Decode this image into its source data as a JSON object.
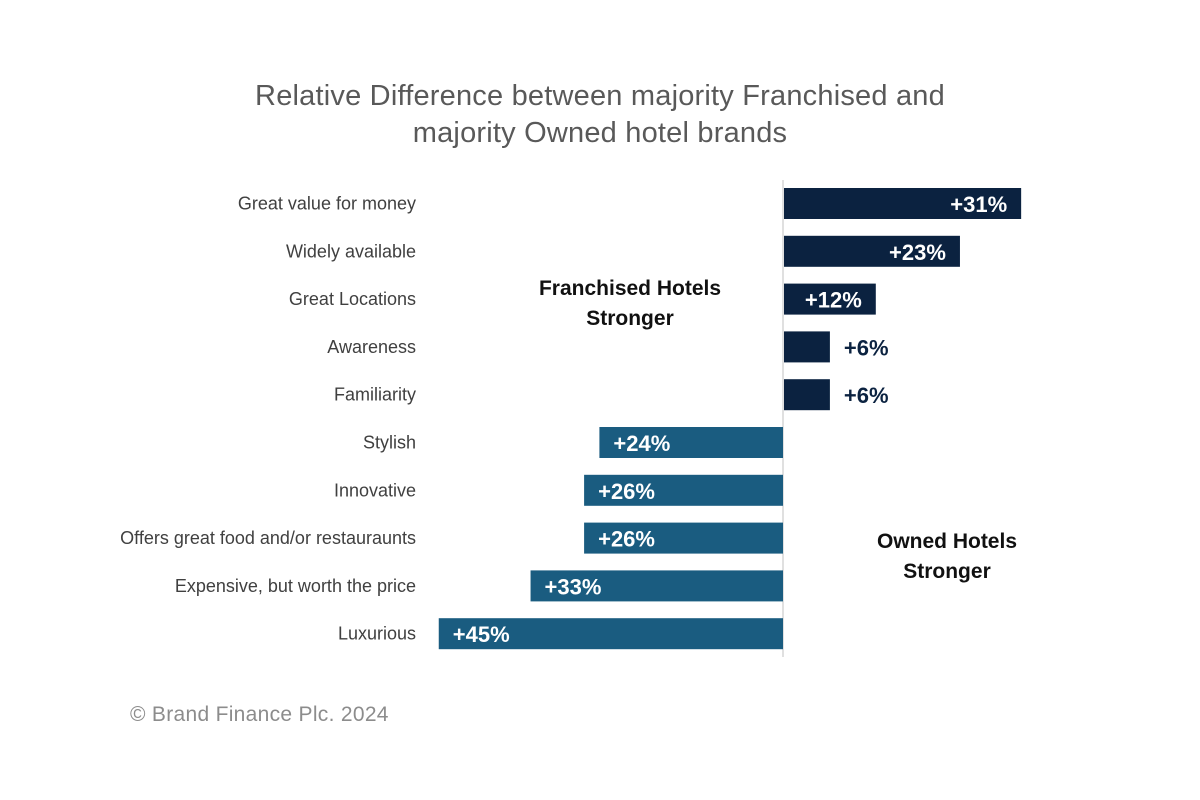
{
  "title_lines": [
    "Relative Difference between majority Franchised and",
    "majority Owned hotel brands"
  ],
  "annotations": {
    "franchised_lines": [
      "Franchised Hotels",
      "Stronger"
    ],
    "owned_lines": [
      "Owned Hotels",
      "Stronger"
    ]
  },
  "copyright": "© Brand Finance Plc. 2024",
  "colors": {
    "franchised": "#0b2240",
    "owned": "#1a5c80",
    "label_on_bar": "#ffffff",
    "label_outside": "#0b2240",
    "category_text": "#404040",
    "axis": "#c0c0c0"
  },
  "chart_data": {
    "type": "bar",
    "orientation": "horizontal-diverging",
    "categories": [
      "Great value for money",
      "Widely available",
      "Great Locations",
      "Awareness",
      "Familiarity",
      "Stylish",
      "Innovative",
      "Offers great food and/or restauraunts",
      "Expensive, but worth the price",
      "Luxurious"
    ],
    "values": [
      31,
      23,
      12,
      6,
      6,
      24,
      26,
      26,
      33,
      45
    ],
    "data_labels": [
      "+31%",
      "+23%",
      "+12%",
      "+6%",
      "+6%",
      "+24%",
      "+26%",
      "+26%",
      "+33%",
      "+45%"
    ],
    "group": [
      "franchised",
      "franchised",
      "franchised",
      "franchised",
      "franchised",
      "owned",
      "owned",
      "owned",
      "owned",
      "owned"
    ],
    "grid": false
  }
}
